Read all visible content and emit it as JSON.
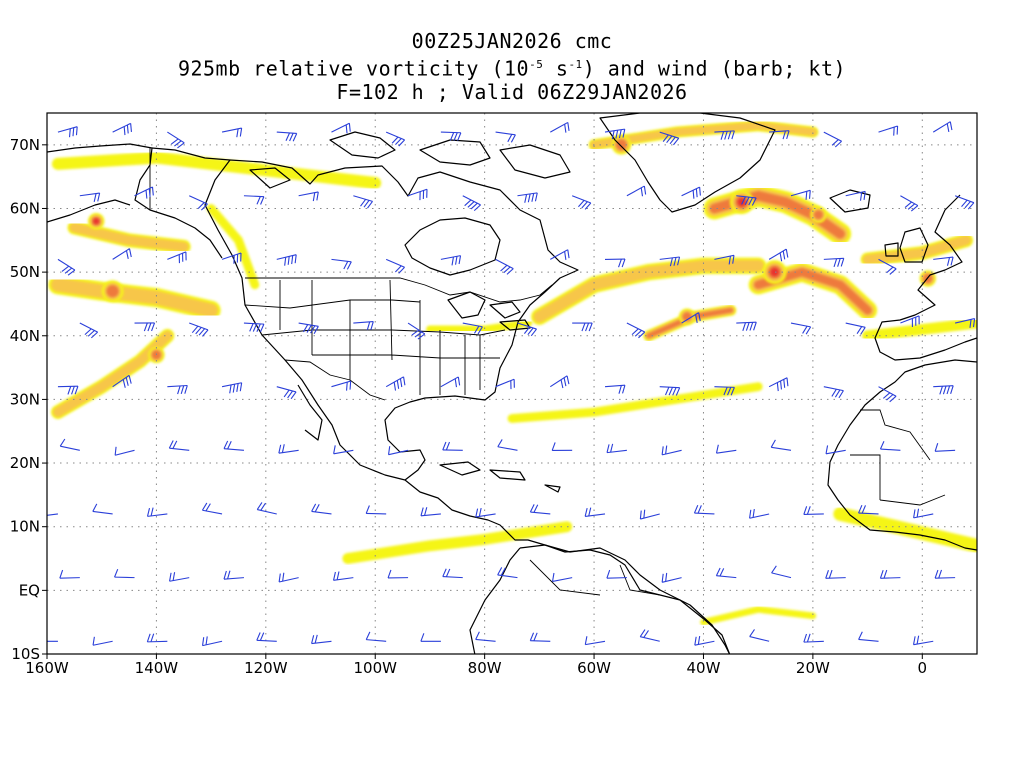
{
  "title": {
    "line1": "00Z25JAN2026 cmc",
    "line2_pre": "925mb relative vorticity (10",
    "line2_sup1": "-5",
    "line2_mid": " s",
    "line2_sup2": "-1",
    "line2_post": ") and wind (barb; kt)",
    "line3": "F=102 h ; Valid 06Z29JAN2026"
  },
  "map": {
    "extent": {
      "lon": [
        -160,
        10
      ],
      "lat": [
        -10,
        75
      ]
    },
    "lat_labels": [
      {
        "lat": 70,
        "text": "70N"
      },
      {
        "lat": 60,
        "text": "60N"
      },
      {
        "lat": 50,
        "text": "50N"
      },
      {
        "lat": 40,
        "text": "40N"
      },
      {
        "lat": 30,
        "text": "30N"
      },
      {
        "lat": 20,
        "text": "20N"
      },
      {
        "lat": 10,
        "text": "10N"
      },
      {
        "lat": 0,
        "text": "EQ"
      },
      {
        "lat": -10,
        "text": "10S"
      }
    ],
    "lon_labels": [
      {
        "lon": -160,
        "text": "160W"
      },
      {
        "lon": -140,
        "text": "140W"
      },
      {
        "lon": -120,
        "text": "120W"
      },
      {
        "lon": -100,
        "text": "100W"
      },
      {
        "lon": -80,
        "text": "80W"
      },
      {
        "lon": -60,
        "text": "60W"
      },
      {
        "lon": -40,
        "text": "40W"
      },
      {
        "lon": -20,
        "text": "20W"
      },
      {
        "lon": 0,
        "text": "0"
      }
    ],
    "colors": {
      "vort_low": "#f5f516",
      "vort_mid": "#f7c64a",
      "vort_high": "#ee7a3e",
      "vort_peak": "#e8302e",
      "barb": "#2a3fd9",
      "coast": "#000000",
      "grid": "#888888"
    },
    "vorticity_bands": [
      {
        "pts": [
          [
            -158,
            67
          ],
          [
            -140,
            68
          ],
          [
            -120,
            66
          ],
          [
            -100,
            64
          ]
        ],
        "w": 2.2,
        "lvl": 1
      },
      {
        "pts": [
          [
            -155,
            57
          ],
          [
            -145,
            55
          ],
          [
            -135,
            54
          ]
        ],
        "w": 2.5,
        "lvl": 2
      },
      {
        "pts": [
          [
            -158,
            48
          ],
          [
            -150,
            47
          ],
          [
            -140,
            46
          ],
          [
            -130,
            44
          ]
        ],
        "w": 3.5,
        "lvl": 2
      },
      {
        "pts": [
          [
            -158,
            28
          ],
          [
            -150,
            32
          ],
          [
            -143,
            36
          ],
          [
            -138,
            40
          ]
        ],
        "w": 2.5,
        "lvl": 2
      },
      {
        "pts": [
          [
            -130,
            60
          ],
          [
            -125,
            55
          ],
          [
            -122,
            48
          ]
        ],
        "w": 1.6,
        "lvl": 1
      },
      {
        "pts": [
          [
            -90,
            41
          ],
          [
            -80,
            41
          ],
          [
            -72,
            42
          ]
        ],
        "w": 1.4,
        "lvl": 1
      },
      {
        "pts": [
          [
            -70,
            43
          ],
          [
            -60,
            48
          ],
          [
            -50,
            50
          ],
          [
            -40,
            51
          ],
          [
            -30,
            51
          ]
        ],
        "w": 3,
        "lvl": 2
      },
      {
        "pts": [
          [
            -38,
            60
          ],
          [
            -30,
            62
          ],
          [
            -25,
            61
          ],
          [
            -20,
            59
          ],
          [
            -15,
            56
          ]
        ],
        "w": 4,
        "lvl": 3
      },
      {
        "pts": [
          [
            -30,
            48
          ],
          [
            -22,
            50
          ],
          [
            -15,
            48
          ],
          [
            -10,
            44
          ]
        ],
        "w": 3.5,
        "lvl": 3
      },
      {
        "pts": [
          [
            -50,
            40
          ],
          [
            -42,
            43
          ],
          [
            -35,
            44
          ]
        ],
        "w": 2,
        "lvl": 3
      },
      {
        "pts": [
          [
            -75,
            27
          ],
          [
            -60,
            28
          ],
          [
            -45,
            30
          ],
          [
            -30,
            32
          ]
        ],
        "w": 1.6,
        "lvl": 1
      },
      {
        "pts": [
          [
            -105,
            5
          ],
          [
            -90,
            7
          ],
          [
            -80,
            8
          ],
          [
            -65,
            10
          ]
        ],
        "w": 2,
        "lvl": 1
      },
      {
        "pts": [
          [
            -60,
            70
          ],
          [
            -45,
            72
          ],
          [
            -30,
            73
          ],
          [
            -20,
            72
          ]
        ],
        "w": 2,
        "lvl": 2
      },
      {
        "pts": [
          [
            -10,
            52
          ],
          [
            0,
            53
          ],
          [
            8,
            55
          ]
        ],
        "w": 2.5,
        "lvl": 2
      },
      {
        "pts": [
          [
            -10,
            40
          ],
          [
            0,
            41
          ],
          [
            10,
            42
          ]
        ],
        "w": 2,
        "lvl": 1
      },
      {
        "pts": [
          [
            -15,
            12
          ],
          [
            -5,
            10
          ],
          [
            5,
            8
          ],
          [
            10,
            7
          ]
        ],
        "w": 2.5,
        "lvl": 1
      },
      {
        "pts": [
          [
            -40,
            -5
          ],
          [
            -30,
            -3
          ],
          [
            -20,
            -4
          ]
        ],
        "w": 1.2,
        "lvl": 1
      }
    ],
    "vorticity_blobs": [
      {
        "lon": -151,
        "lat": 58,
        "r": 1.5,
        "lvl": 4
      },
      {
        "lon": -148,
        "lat": 47,
        "r": 2,
        "lvl": 3
      },
      {
        "lon": -140,
        "lat": 37,
        "r": 1.5,
        "lvl": 3
      },
      {
        "lon": -33,
        "lat": 61,
        "r": 2.2,
        "lvl": 4
      },
      {
        "lon": -19,
        "lat": 59,
        "r": 1.5,
        "lvl": 3
      },
      {
        "lon": -27,
        "lat": 50,
        "r": 2.2,
        "lvl": 4
      },
      {
        "lon": -43,
        "lat": 43,
        "r": 1.5,
        "lvl": 3
      },
      {
        "lon": 1,
        "lat": 49,
        "r": 1.5,
        "lvl": 3
      },
      {
        "lon": -55,
        "lat": 70,
        "r": 1.8,
        "lvl": 3
      }
    ]
  }
}
